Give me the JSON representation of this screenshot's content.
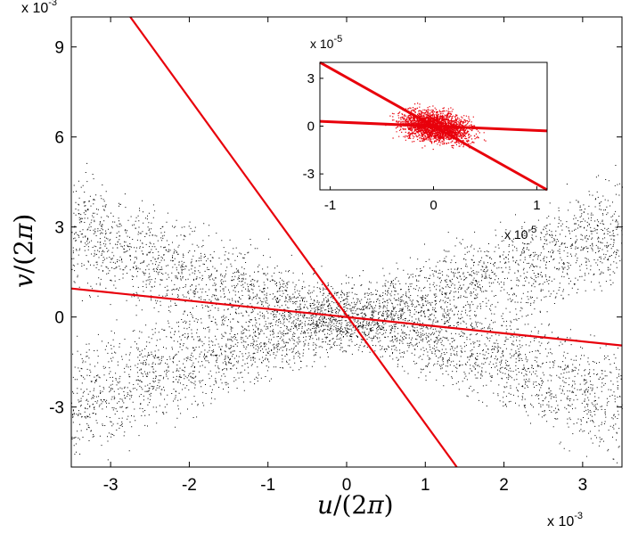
{
  "chart_data": [
    {
      "type": "scatter",
      "xlabel_var": "u",
      "xlabel_denom": "/(2",
      "xlabel_pi": "π",
      "xlabel_close": ")",
      "ylabel_var": "v",
      "ylabel_denom": "/(2",
      "ylabel_pi": "π",
      "ylabel_close": ")",
      "x_multiplier": "x 10",
      "x_exponent": "-3",
      "y_multiplier": "x 10",
      "y_exponent": "-3",
      "xlim": [
        -3.5,
        3.5
      ],
      "ylim": [
        -5,
        10
      ],
      "xticks": [
        -3,
        -2,
        -1,
        0,
        1,
        2,
        3
      ],
      "yticks": [
        -3,
        0,
        3,
        6,
        9
      ],
      "xtick_labels": [
        "-3",
        "-2",
        "-1",
        "0",
        "1",
        "2",
        "3"
      ],
      "ytick_labels": [
        "-3",
        "0",
        "3",
        "6",
        "9"
      ],
      "grid": false,
      "point_color": "#000000",
      "line_color": "#e8000b",
      "lines": [
        {
          "x": [
            -2.75,
            1.4
          ],
          "y": [
            10,
            -5
          ]
        },
        {
          "x": [
            -3.5,
            3.5
          ],
          "y": [
            0.95,
            -0.95
          ]
        }
      ]
    },
    {
      "type": "scatter",
      "x_multiplier": "x 10",
      "x_exponent": "-5",
      "y_multiplier": "x 10",
      "y_exponent": "-5",
      "xlim": [
        -1.1,
        1.1
      ],
      "ylim": [
        -4,
        4
      ],
      "xticks": [
        -1,
        0,
        1
      ],
      "yticks": [
        -3,
        0,
        3
      ],
      "xtick_labels": [
        "-1",
        "0",
        "1"
      ],
      "ytick_labels": [
        "-3",
        "0",
        "3"
      ],
      "grid": false,
      "line_color": "#e8000b",
      "lines": [
        {
          "x": [
            -1.1,
            1.1
          ],
          "y": [
            4.0,
            -4.0
          ]
        },
        {
          "x": [
            -1.1,
            1.1
          ],
          "y": [
            0.3,
            -0.3
          ]
        }
      ]
    }
  ]
}
